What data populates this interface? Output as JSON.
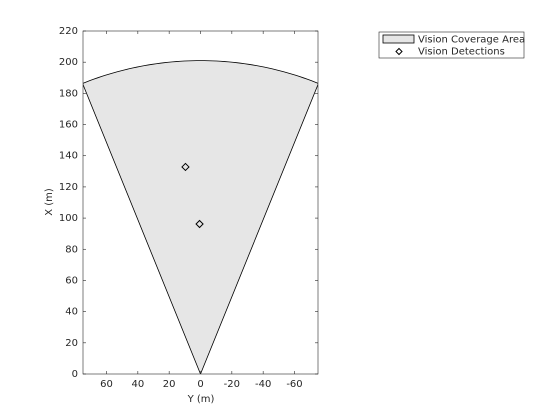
{
  "chart_data": {
    "type": "birdseye",
    "xlabel": "Y (m)",
    "ylabel": "X (m)",
    "xlim": [
      75,
      -75
    ],
    "xticks": [
      60,
      40,
      20,
      0,
      -20,
      -40,
      -60
    ],
    "ylim": [
      0,
      220
    ],
    "yticks": [
      0,
      20,
      40,
      60,
      80,
      100,
      120,
      140,
      160,
      180,
      200,
      220
    ],
    "coverage": {
      "name": "Vision Coverage Area",
      "range": 201,
      "fov": 44,
      "color": "#e6e6e6"
    },
    "detections": {
      "name": "Vision Detections",
      "x": [
        9.6,
        0.6
      ],
      "y": [
        132.8,
        96.2
      ]
    },
    "legend": "outside-top-right"
  }
}
